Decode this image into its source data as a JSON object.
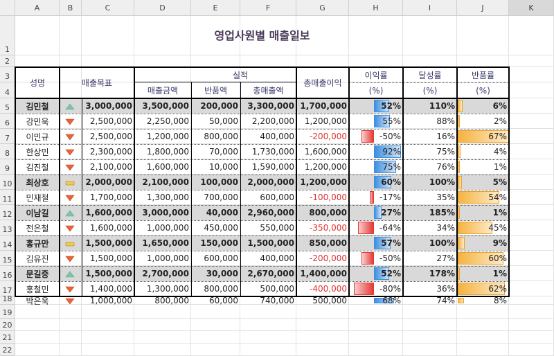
{
  "title": "영업사원별 매출일보",
  "headers": {
    "name": "성명",
    "target": "매출목표",
    "actual_a": "실",
    "actual_b": "적",
    "sales": "매출금액",
    "returns": "반품액",
    "total": "총매출액",
    "profit": "총매출이익",
    "margin": "이익률",
    "achieve": "달성률",
    "return_rate": "반품률",
    "pct": "(%)"
  },
  "columns": [
    "A",
    "B",
    "C",
    "D",
    "E",
    "F",
    "G",
    "H",
    "I",
    "J",
    "K"
  ],
  "row_numbers": [
    "1",
    "2",
    "3",
    "4",
    "5",
    "6",
    "7",
    "8",
    "9",
    "10",
    "11",
    "12",
    "13",
    "14",
    "15",
    "16",
    "17",
    "18",
    "19",
    "20",
    "21",
    "22"
  ],
  "colors": {
    "up": "#7fc4a8",
    "down": "#e8633a",
    "flat": "#f2c94c",
    "blue": "#3d8fe0",
    "red": "#e53935",
    "orange": "#f5b341"
  },
  "rows": [
    {
      "name": "김민철",
      "icon": "up",
      "target": "3,000,000",
      "sales": "3,500,000",
      "returns": "200,000",
      "total": "3,300,000",
      "profit": "1,700,000",
      "margin": "52%",
      "margin_v": 52,
      "achieve": "110%",
      "rr": "6%",
      "rr_v": 6,
      "bold": true
    },
    {
      "name": "강민욱",
      "icon": "down",
      "target": "2,500,000",
      "sales": "2,250,000",
      "returns": "50,000",
      "total": "2,200,000",
      "profit": "1,200,000",
      "margin": "55%",
      "margin_v": 55,
      "achieve": "88%",
      "rr": "2%",
      "rr_v": 2,
      "bold": false
    },
    {
      "name": "이민규",
      "icon": "down",
      "target": "2,500,000",
      "sales": "1,200,000",
      "returns": "800,000",
      "total": "400,000",
      "profit": "-200,000",
      "margin": "-50%",
      "margin_v": -50,
      "achieve": "16%",
      "rr": "67%",
      "rr_v": 67,
      "bold": false
    },
    {
      "name": "한상민",
      "icon": "down",
      "target": "2,300,000",
      "sales": "1,800,000",
      "returns": "70,000",
      "total": "1,730,000",
      "profit": "1,600,000",
      "margin": "92%",
      "margin_v": 92,
      "achieve": "75%",
      "rr": "4%",
      "rr_v": 4,
      "bold": false
    },
    {
      "name": "김진철",
      "icon": "down",
      "target": "2,100,000",
      "sales": "1,600,000",
      "returns": "10,000",
      "total": "1,590,000",
      "profit": "1,200,000",
      "margin": "75%",
      "margin_v": 75,
      "achieve": "76%",
      "rr": "1%",
      "rr_v": 1,
      "bold": false
    },
    {
      "name": "최상호",
      "icon": "flat",
      "target": "2,000,000",
      "sales": "2,100,000",
      "returns": "100,000",
      "total": "2,000,000",
      "profit": "1,200,000",
      "margin": "60%",
      "margin_v": 60,
      "achieve": "100%",
      "rr": "5%",
      "rr_v": 5,
      "bold": true
    },
    {
      "name": "민재철",
      "icon": "down",
      "target": "1,700,000",
      "sales": "1,300,000",
      "returns": "700,000",
      "total": "600,000",
      "profit": "-100,000",
      "margin": "-17%",
      "margin_v": -17,
      "achieve": "35%",
      "rr": "54%",
      "rr_v": 54,
      "bold": false
    },
    {
      "name": "이남길",
      "icon": "up",
      "target": "1,600,000",
      "sales": "3,000,000",
      "returns": "40,000",
      "total": "2,960,000",
      "profit": "800,000",
      "margin": "27%",
      "margin_v": 27,
      "achieve": "185%",
      "rr": "1%",
      "rr_v": 1,
      "bold": true
    },
    {
      "name": "전은철",
      "icon": "down",
      "target": "1,600,000",
      "sales": "1,000,000",
      "returns": "450,000",
      "total": "550,000",
      "profit": "-350,000",
      "margin": "-64%",
      "margin_v": -64,
      "achieve": "34%",
      "rr": "45%",
      "rr_v": 45,
      "bold": false
    },
    {
      "name": "홍규만",
      "icon": "flat",
      "target": "1,500,000",
      "sales": "1,650,000",
      "returns": "150,000",
      "total": "1,500,000",
      "profit": "850,000",
      "margin": "57%",
      "margin_v": 57,
      "achieve": "100%",
      "rr": "9%",
      "rr_v": 9,
      "bold": true
    },
    {
      "name": "김유진",
      "icon": "down",
      "target": "1,500,000",
      "sales": "1,000,000",
      "returns": "600,000",
      "total": "400,000",
      "profit": "-200,000",
      "margin": "-50%",
      "margin_v": -50,
      "achieve": "27%",
      "rr": "60%",
      "rr_v": 60,
      "bold": false
    },
    {
      "name": "문길중",
      "icon": "up",
      "target": "1,500,000",
      "sales": "2,700,000",
      "returns": "30,000",
      "total": "2,670,000",
      "profit": "1,400,000",
      "margin": "52%",
      "margin_v": 52,
      "achieve": "178%",
      "rr": "1%",
      "rr_v": 1,
      "bold": true
    },
    {
      "name": "홍철민",
      "icon": "down",
      "target": "1,400,000",
      "sales": "1,300,000",
      "returns": "800,000",
      "total": "500,000",
      "profit": "-400,000",
      "margin": "-80%",
      "margin_v": -80,
      "achieve": "36%",
      "rr": "62%",
      "rr_v": 62,
      "bold": false
    },
    {
      "name": "박은욱",
      "icon": "down",
      "target": "1,000,000",
      "sales": "800,000",
      "returns": "60,000",
      "total": "740,000",
      "profit": "500,000",
      "margin": "68%",
      "margin_v": 68,
      "achieve": "74%",
      "rr": "8%",
      "rr_v": 8,
      "bold": false
    }
  ]
}
